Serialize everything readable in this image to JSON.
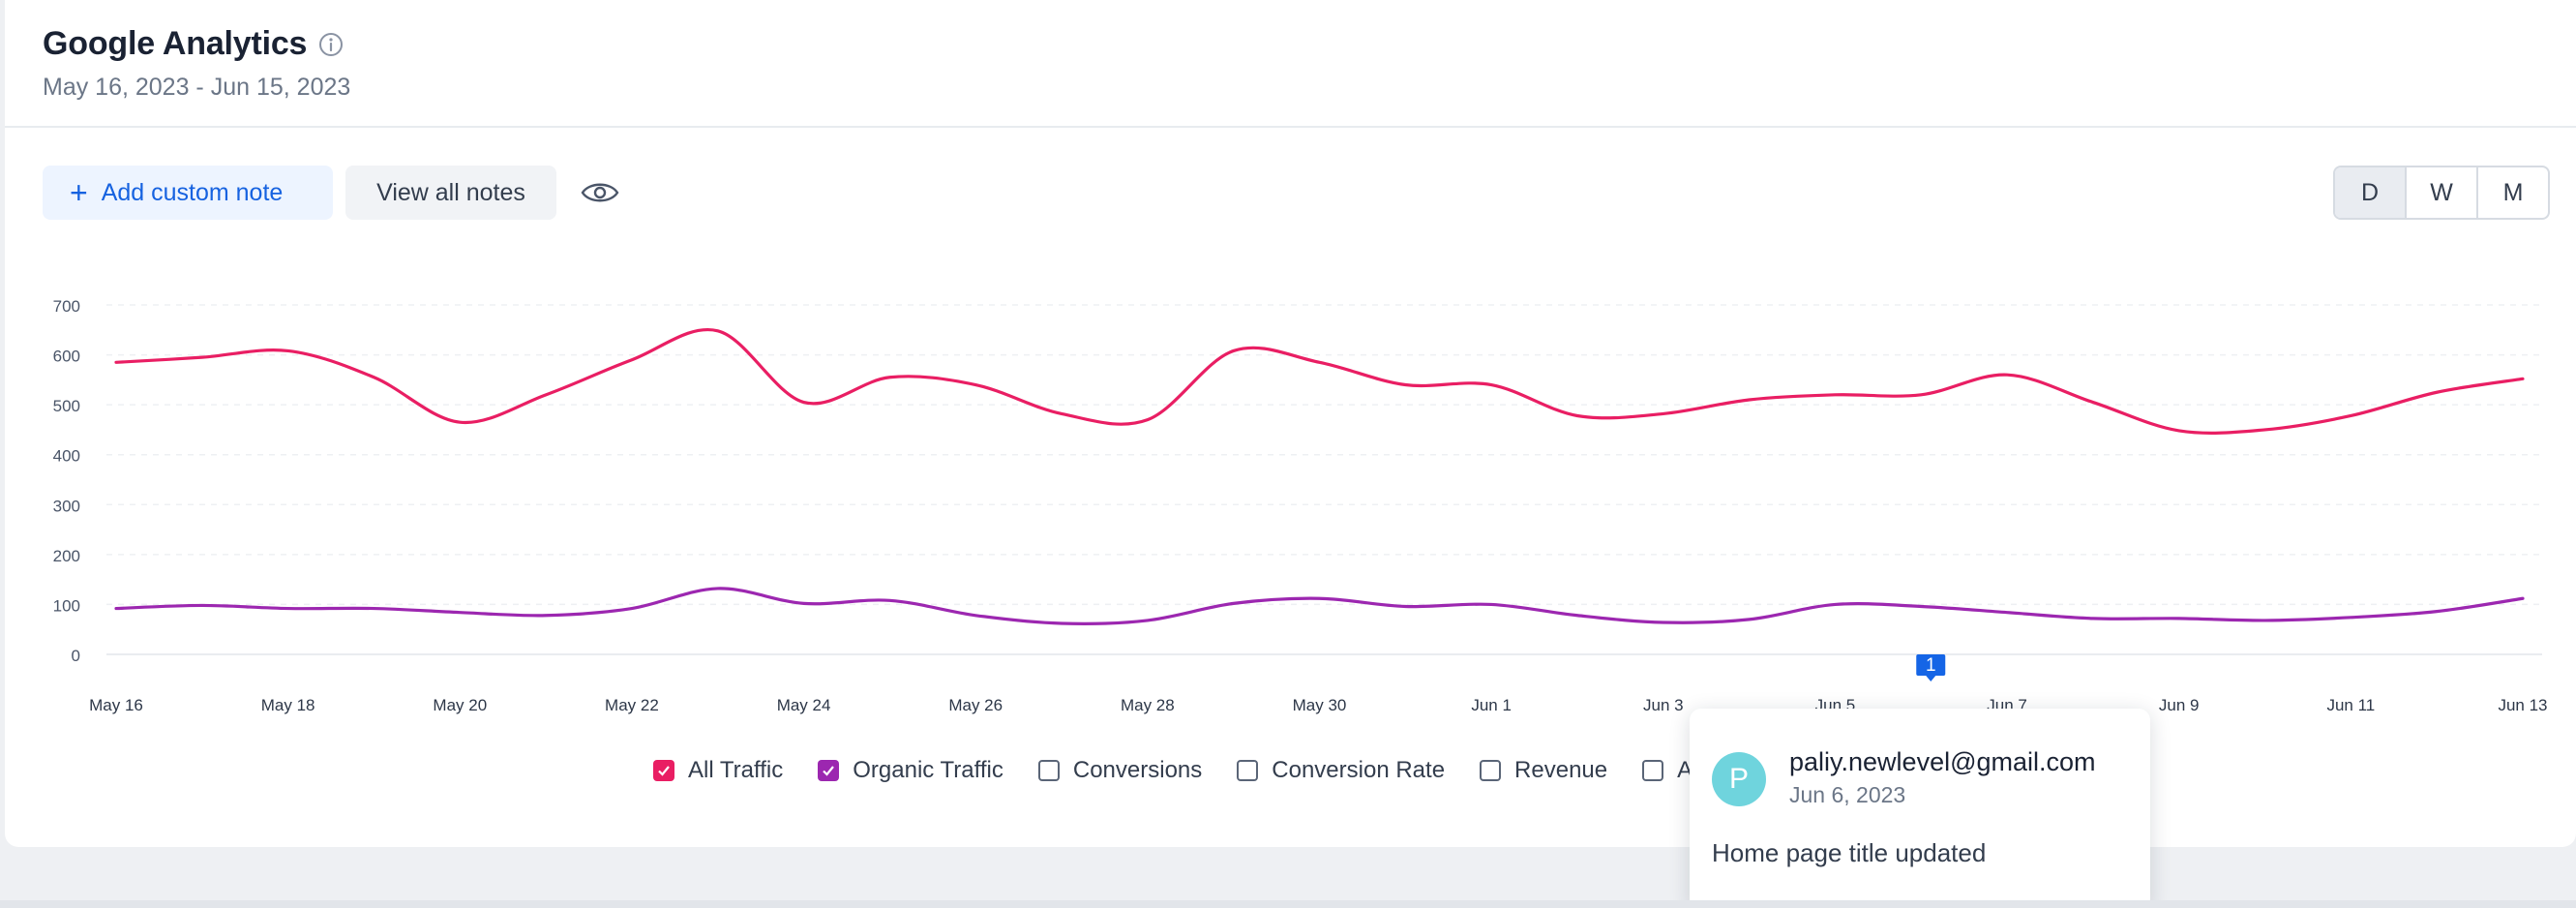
{
  "header": {
    "title": "Google Analytics",
    "date_range": "May 16, 2023 - Jun 15, 2023"
  },
  "toolbar": {
    "add_note_label": "Add custom note",
    "view_notes_label": "View all notes",
    "granularity": [
      "D",
      "W",
      "M"
    ],
    "selected_granularity": "D"
  },
  "legend": {
    "items": [
      {
        "label": "All Traffic",
        "checked": true,
        "color": "#e91e63"
      },
      {
        "label": "Organic Traffic",
        "checked": true,
        "color": "#9c27b0"
      },
      {
        "label": "Conversions",
        "checked": false
      },
      {
        "label": "Conversion Rate",
        "checked": false
      },
      {
        "label": "Revenue",
        "checked": false
      },
      {
        "label": "A",
        "checked": false
      }
    ]
  },
  "note_marker": {
    "label": "1",
    "color": "#1565e6"
  },
  "popup": {
    "avatar_letter": "P",
    "email": "paliy.newlevel@gmail.com",
    "date": "Jun 6, 2023",
    "note": "Home page title updated"
  },
  "chart_data": {
    "type": "line",
    "ylim": [
      0,
      700
    ],
    "y_ticks": [
      0,
      100,
      200,
      300,
      400,
      500,
      600,
      700
    ],
    "x_tick_labels": [
      "May 16",
      "May 18",
      "May 20",
      "May 22",
      "May 24",
      "May 26",
      "May 28",
      "May 30",
      "Jun 1",
      "Jun 3",
      "Jun 5",
      "Jun 7",
      "Jun 9",
      "Jun 11",
      "Jun 13"
    ],
    "x": [
      "May 16",
      "May 17",
      "May 18",
      "May 19",
      "May 20",
      "May 21",
      "May 22",
      "May 23",
      "May 24",
      "May 25",
      "May 26",
      "May 27",
      "May 28",
      "May 29",
      "May 30",
      "May 31",
      "Jun 1",
      "Jun 2",
      "Jun 3",
      "Jun 4",
      "Jun 5",
      "Jun 6",
      "Jun 7",
      "Jun 8",
      "Jun 9",
      "Jun 10",
      "Jun 11",
      "Jun 12",
      "Jun 13"
    ],
    "grid": true,
    "series": [
      {
        "name": "All Traffic",
        "color": "#e91e63",
        "values": [
          585,
          595,
          608,
          555,
          465,
          520,
          590,
          648,
          505,
          555,
          540,
          482,
          470,
          608,
          585,
          540,
          540,
          478,
          482,
          510,
          520,
          520,
          560,
          505,
          448,
          450,
          478,
          525,
          552
        ]
      },
      {
        "name": "Organic Traffic",
        "color": "#9c27b0",
        "values": [
          92,
          98,
          92,
          92,
          84,
          78,
          92,
          132,
          102,
          108,
          78,
          62,
          68,
          102,
          112,
          96,
          100,
          78,
          64,
          70,
          100,
          96,
          84,
          72,
          72,
          68,
          74,
          86,
          112
        ]
      }
    ],
    "note_markers": [
      {
        "x": "Jun 6",
        "label": "1"
      }
    ]
  }
}
